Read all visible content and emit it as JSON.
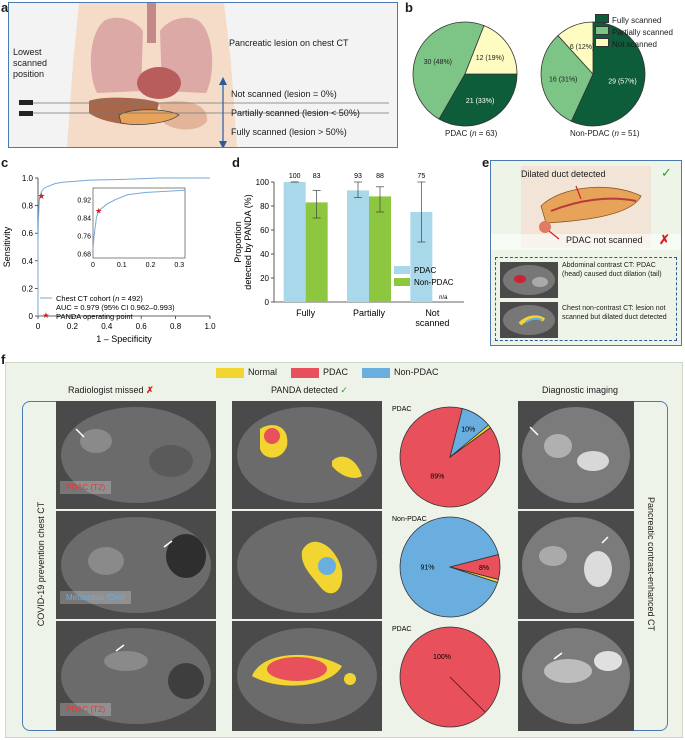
{
  "panel_labels": {
    "a": "a",
    "b": "b",
    "c": "c",
    "d": "d",
    "e": "e",
    "f": "f"
  },
  "panel_a": {
    "lowest_scanned_position": "Lowest scanned position",
    "lesion_title": "Pancreatic lesion on chest CT",
    "levels": [
      "Not scanned (lesion = 0%)",
      "Partially scanned (lesion < 50%)",
      "Fully scanned (lesion > 50%)"
    ]
  },
  "panel_b": {
    "legend": [
      "Fully scanned",
      "Partially scanned",
      "Not scanned"
    ],
    "colors": {
      "fully": "#0d5c3a",
      "partially": "#7dc586",
      "not": "#fefcc0"
    },
    "pies": [
      {
        "caption_prefix": "PDAC (",
        "n_label": "n",
        "caption_suffix": " = 63)",
        "slices": [
          {
            "label": "21 (33%)",
            "value": 21
          },
          {
            "label": "30 (48%)",
            "value": 30
          },
          {
            "label": "12 (19%)",
            "value": 12
          }
        ]
      },
      {
        "caption_prefix": "Non-PDAC (",
        "n_label": "n",
        "caption_suffix": " = 51)",
        "slices": [
          {
            "label": "29 (57%)",
            "value": 29
          },
          {
            "label": "16 (31%)",
            "value": 16
          },
          {
            "label": "6 (12%)",
            "value": 6
          }
        ]
      }
    ]
  },
  "chart_data": [
    {
      "type": "line",
      "panel": "c",
      "xlabel": "1 – Specificity",
      "ylabel": "Sensitivity",
      "xlim": [
        0,
        1
      ],
      "ylim": [
        0,
        1
      ],
      "xticks": [
        "0",
        "0.2",
        "0.4",
        "0.6",
        "0.8",
        "1.0"
      ],
      "yticks": [
        "0",
        "0.2",
        "0.4",
        "0.6",
        "0.8",
        "1.0"
      ],
      "roc_x": [
        0,
        0.0,
        0.002,
        0.004,
        0.006,
        0.008,
        0.01,
        0.015,
        0.02,
        0.03,
        0.04,
        0.06,
        0.08,
        0.1,
        0.15,
        0.2,
        0.3,
        0.5,
        0.7,
        1.0
      ],
      "roc_y": [
        0,
        0.55,
        0.68,
        0.74,
        0.8,
        0.84,
        0.86,
        0.88,
        0.9,
        0.92,
        0.93,
        0.94,
        0.95,
        0.96,
        0.97,
        0.975,
        0.985,
        0.99,
        1.0,
        1.0
      ],
      "operating_point": [
        0.02,
        0.87
      ],
      "inset": {
        "xticks": [
          "0",
          "0.1",
          "0.2",
          "0.3"
        ],
        "yticks": [
          "0.68",
          "0.76",
          "0.84",
          "0.92"
        ],
        "xlim": [
          0,
          0.32
        ],
        "ylim": [
          0.66,
          0.97
        ]
      },
      "legend": {
        "series": "Chest CT cohort (",
        "n_label": "n",
        "series_suffix": " = 492)",
        "auc": "AUC = 0.979 (95% CI 0.962–0.993)",
        "point": "PANDA operating point"
      }
    },
    {
      "type": "bar",
      "panel": "d",
      "categories": [
        "Fully",
        "Partially",
        "Not scanned"
      ],
      "ylabel": "Proportion detected by PANDA (%)",
      "ylim": [
        0,
        100
      ],
      "yticks": [
        "0",
        "20",
        "40",
        "60",
        "80",
        "100"
      ],
      "series": [
        {
          "name": "PDAC",
          "color": "#a8d8ea",
          "values": [
            100,
            93,
            75
          ],
          "labels": [
            "100",
            "93",
            "75"
          ],
          "err_low": [
            100,
            87,
            50
          ],
          "err_high": [
            100,
            100,
            100
          ]
        },
        {
          "name": "Non-PDAC",
          "color": "#8dc63f",
          "values": [
            83,
            88,
            null
          ],
          "labels": [
            "83",
            "88",
            "n/a"
          ],
          "err_low": [
            70,
            75,
            null
          ],
          "err_high": [
            93,
            96,
            null
          ]
        }
      ]
    },
    {
      "type": "pie",
      "panel": "f",
      "pies": [
        {
          "title": "PDAC",
          "slices": [
            {
              "name": "PDAC",
              "value": 89,
              "label": "89%"
            },
            {
              "name": "Non-PDAC",
              "value": 10,
              "label": "10%"
            },
            {
              "name": "Normal",
              "value": 1,
              "label": ""
            }
          ]
        },
        {
          "title": "Non-PDAC",
          "slices": [
            {
              "name": "Non-PDAC",
              "value": 91,
              "label": "91%"
            },
            {
              "name": "PDAC",
              "value": 8,
              "label": "8%"
            },
            {
              "name": "Normal",
              "value": 1,
              "label": ""
            }
          ]
        },
        {
          "title": "PDAC",
          "slices": [
            {
              "name": "PDAC",
              "value": 100,
              "label": "100%"
            }
          ]
        }
      ]
    }
  ],
  "panel_e": {
    "dilated": "Dilated duct detected",
    "not_scanned": "PDAC not scanned",
    "abd": "Abdominal contrast CT: PDAC (head) caused duct dilation (tail)",
    "chest": "Chest non-contrast CT: lesion not scanned but dilated duct detected"
  },
  "panel_f": {
    "legend": [
      {
        "name": "Normal",
        "color": "#f2d530"
      },
      {
        "name": "PDAC",
        "color": "#e8505b"
      },
      {
        "name": "Non-PDAC",
        "color": "#6aaee0"
      }
    ],
    "col_missed": "Radiologist missed",
    "col_panda": "PANDA detected",
    "col_diag": "Diagnostic imaging",
    "left_label": "COVID-19 prevention chest CT",
    "right_label": "Pancreatic contrast-enhanced CT",
    "row_tags": [
      "PDAC (T2)",
      "Metastasis (Om)",
      "PDAC (T2)"
    ]
  }
}
